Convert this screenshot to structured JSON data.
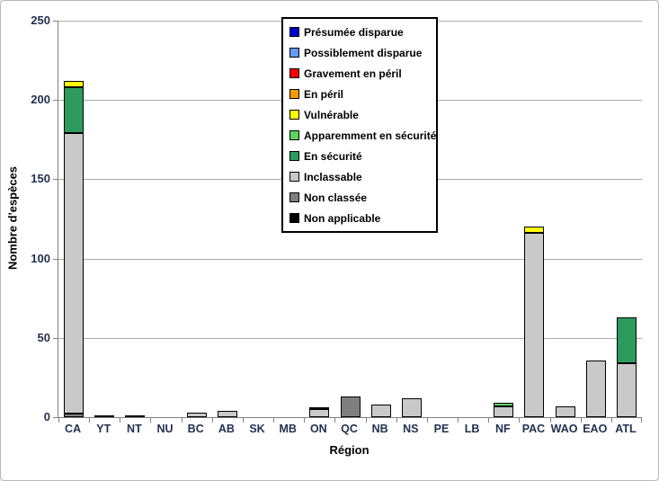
{
  "chart_data": {
    "type": "bar",
    "stacked": true,
    "title": "",
    "xlabel": "Région",
    "ylabel": "Nombre d'espèces",
    "ylim": [
      0,
      250
    ],
    "yticks": [
      0,
      50,
      100,
      150,
      200,
      250
    ],
    "grid": true,
    "legend_position": "inside-top-center",
    "stack_order": "reverse-of-series-list-bottom-up",
    "categories": [
      "CA",
      "YT",
      "NT",
      "NU",
      "BC",
      "AB",
      "SK",
      "MB",
      "ON",
      "QC",
      "NB",
      "NS",
      "PE",
      "LB",
      "NF",
      "PAC",
      "WAO",
      "EAO",
      "ATL"
    ],
    "series": [
      {
        "name": "Présumée disparue",
        "color": "#0000CC",
        "values": [
          0,
          0,
          0,
          0,
          0,
          0,
          0,
          0,
          0,
          0,
          0,
          0,
          0,
          0,
          0,
          0,
          0,
          0,
          0
        ]
      },
      {
        "name": "Possiblement disparue",
        "color": "#6699FF",
        "values": [
          0,
          0,
          0,
          0,
          0,
          0,
          0,
          0,
          0,
          0,
          0,
          0,
          0,
          0,
          0,
          0,
          0,
          0,
          0
        ]
      },
      {
        "name": "Gravement en péril",
        "color": "#FF0000",
        "values": [
          0,
          0,
          0,
          0,
          0,
          0,
          0,
          0,
          0,
          0,
          0,
          0,
          0,
          0,
          0,
          0,
          0,
          0,
          0
        ]
      },
      {
        "name": "En péril",
        "color": "#FF9900",
        "values": [
          0,
          0,
          0,
          0,
          0,
          0,
          0,
          0,
          0,
          0,
          0,
          0,
          0,
          0,
          0,
          0,
          0,
          0,
          0
        ]
      },
      {
        "name": "Vulnérable",
        "color": "#FFFF00",
        "values": [
          4,
          0,
          0,
          0,
          0,
          0,
          0,
          0,
          0,
          0,
          0,
          0,
          0,
          0,
          0,
          4,
          0,
          0,
          0
        ]
      },
      {
        "name": "Apparemment en sécurité",
        "color": "#5FD35F",
        "values": [
          0,
          0,
          0,
          0,
          0,
          0,
          0,
          0,
          0,
          0,
          0,
          0,
          0,
          0,
          2,
          0,
          0,
          0,
          0
        ]
      },
      {
        "name": "En sécurité",
        "color": "#2E9B5E",
        "values": [
          29,
          0,
          0,
          0,
          0,
          0,
          0,
          0,
          1,
          0,
          0,
          0,
          0,
          0,
          0,
          0,
          0,
          0,
          29
        ]
      },
      {
        "name": "Inclassable",
        "color": "#C9C9C9",
        "values": [
          177,
          1,
          1,
          0,
          3,
          4,
          0,
          0,
          5,
          0,
          8,
          12,
          0,
          0,
          7,
          116,
          7,
          36,
          34
        ]
      },
      {
        "name": "Non classée",
        "color": "#7F7F7F",
        "values": [
          2,
          0,
          0,
          0,
          0,
          0,
          0,
          0,
          0,
          13,
          0,
          0,
          0,
          0,
          0,
          0,
          0,
          0,
          0
        ]
      },
      {
        "name": "Non applicable",
        "color": "#000000",
        "values": [
          0,
          0,
          0,
          0,
          0,
          0,
          0,
          0,
          0,
          0,
          0,
          0,
          0,
          0,
          0,
          0,
          0,
          0,
          0
        ]
      }
    ],
    "style": {
      "gridline_color": "#ABABAB",
      "axis_color": "#808080",
      "bar_border_color": "#000000",
      "tick_label_color": "#23314F"
    }
  }
}
